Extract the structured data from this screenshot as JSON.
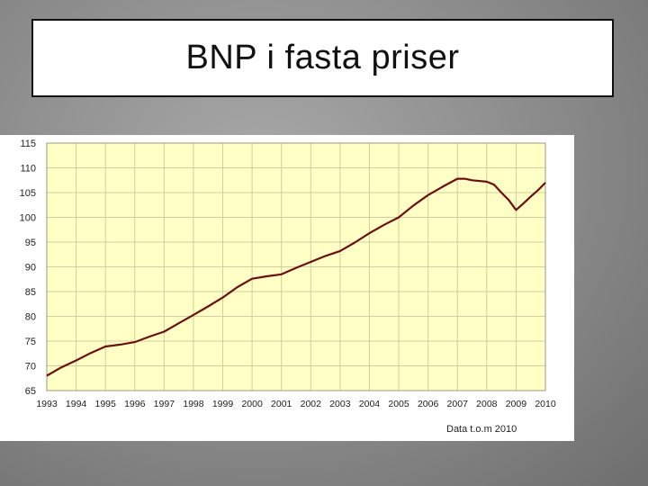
{
  "slide": {
    "title": "BNP i fasta priser"
  },
  "colors": {
    "plot_background": "#ffffc6",
    "grid": "#cfcfa0",
    "line": "#6b1010",
    "title_box": "#ffffff"
  },
  "chart_data": {
    "type": "line",
    "title": "",
    "xlabel": "",
    "ylabel": "",
    "ylim": [
      65,
      115
    ],
    "yticks": [
      65,
      70,
      75,
      80,
      85,
      90,
      95,
      100,
      105,
      110,
      115
    ],
    "xlim": [
      1993,
      2010
    ],
    "xticks": [
      "1993",
      "1994",
      "1995",
      "1996",
      "1997",
      "1998",
      "1999",
      "2000",
      "2001",
      "2002",
      "2003",
      "2004",
      "2005",
      "2006",
      "2007",
      "2008",
      "2009",
      "2010"
    ],
    "annotation": "Data t.o.m 2010",
    "grid": true,
    "series": [
      {
        "x": [
          1993,
          1993.5,
          1994,
          1994.5,
          1995,
          1995.5,
          1996,
          1996.5,
          1997,
          1997.5,
          1998,
          1998.5,
          1999,
          1999.5,
          2000,
          2000.5,
          2001,
          2001.5,
          2002,
          2002.5,
          2003,
          2003.5,
          2004,
          2004.5,
          2005,
          2005.5,
          2006,
          2006.5,
          2007,
          2007.25,
          2007.5,
          2008,
          2008.25,
          2008.5,
          2008.75,
          2009,
          2009.25,
          2009.5,
          2009.75,
          2010
        ],
        "values": [
          68.0,
          69.7,
          71.1,
          72.6,
          73.9,
          74.3,
          74.8,
          75.9,
          76.9,
          78.6,
          80.3,
          82.0,
          83.8,
          85.9,
          87.6,
          88.1,
          88.5,
          89.8,
          91.0,
          92.2,
          93.2,
          94.9,
          96.8,
          98.5,
          100.0,
          102.4,
          104.5,
          106.2,
          107.8,
          107.8,
          107.5,
          107.2,
          106.6,
          105.0,
          103.5,
          101.5,
          102.8,
          104.2,
          105.5,
          107.0
        ]
      }
    ]
  }
}
